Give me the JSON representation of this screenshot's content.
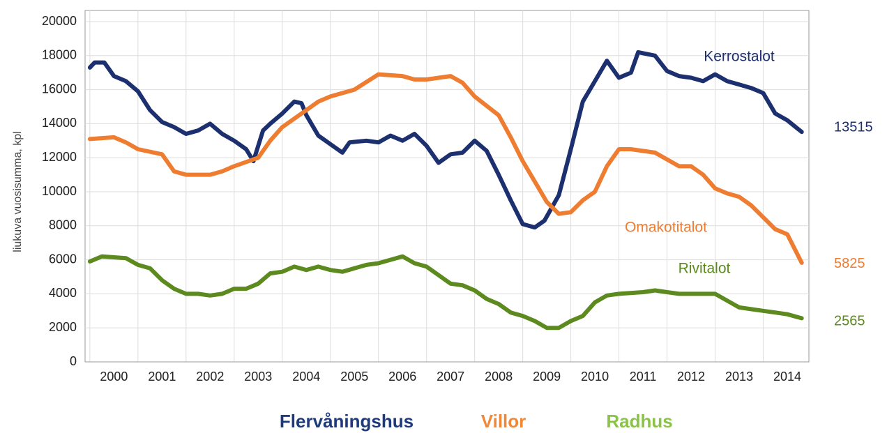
{
  "chart_data": {
    "type": "line",
    "ylabel": "liukuva vuosisumma, kpl",
    "xlim": [
      1999.9,
      2014.95
    ],
    "xticks": [
      2000,
      2001,
      2002,
      2003,
      2004,
      2005,
      2006,
      2007,
      2008,
      2009,
      2010,
      2011,
      2012,
      2013,
      2014
    ],
    "ylim": [
      0,
      20000
    ],
    "yticks": [
      0,
      2000,
      4000,
      6000,
      8000,
      10000,
      12000,
      14000,
      16000,
      18000,
      20000
    ],
    "grid": true,
    "series": [
      {
        "name": "Flervåningshus",
        "label": "Kerrostalot",
        "color": "#1c2f6e",
        "legend_color": "#1f3a7a",
        "x": [
          2000.0,
          2000.1,
          2000.3,
          2000.5,
          2000.75,
          2001.0,
          2001.25,
          2001.5,
          2001.75,
          2002.0,
          2002.25,
          2002.5,
          2002.75,
          2003.0,
          2003.25,
          2003.4,
          2003.6,
          2003.75,
          2004.0,
          2004.25,
          2004.4,
          2004.5,
          2004.75,
          2005.0,
          2005.25,
          2005.4,
          2005.75,
          2006.0,
          2006.25,
          2006.5,
          2006.75,
          2007.0,
          2007.25,
          2007.5,
          2007.75,
          2008.0,
          2008.25,
          2008.5,
          2008.75,
          2009.0,
          2009.25,
          2009.45,
          2009.75,
          2010.0,
          2010.25,
          2010.5,
          2010.75,
          2011.0,
          2011.25,
          2011.4,
          2011.75,
          2012.0,
          2012.25,
          2012.5,
          2012.75,
          2013.0,
          2013.25,
          2013.5,
          2013.75,
          2014.0,
          2014.25,
          2014.5,
          2014.8
        ],
        "values": [
          17300,
          17600,
          17600,
          16800,
          16500,
          15900,
          14800,
          14100,
          13800,
          13400,
          13600,
          14000,
          13400,
          13000,
          12500,
          11800,
          13600,
          14000,
          14600,
          15300,
          15200,
          14500,
          13300,
          12800,
          12300,
          12900,
          13000,
          12900,
          13300,
          13000,
          13400,
          12700,
          11700,
          12200,
          12300,
          13000,
          12400,
          11000,
          9500,
          8100,
          7900,
          8300,
          9800,
          12500,
          15300,
          16500,
          17700,
          16700,
          17000,
          18200,
          18000,
          17100,
          16800,
          16700,
          16500,
          16900,
          16500,
          16300,
          16100,
          15800,
          14600,
          14200,
          13515
        ]
      },
      {
        "name": "Villor",
        "label": "Omakotitalot",
        "color": "#ee7d31",
        "legend_color": "#f0883a",
        "x": [
          2000.0,
          2000.5,
          2000.75,
          2001.0,
          2001.5,
          2001.75,
          2002.0,
          2002.5,
          2002.75,
          2003.0,
          2003.5,
          2003.75,
          2004.0,
          2004.5,
          2004.75,
          2005.0,
          2005.5,
          2006.0,
          2006.5,
          2006.75,
          2007.0,
          2007.5,
          2007.75,
          2008.0,
          2008.5,
          2008.75,
          2009.0,
          2009.25,
          2009.5,
          2009.75,
          2010.0,
          2010.25,
          2010.5,
          2010.75,
          2011.0,
          2011.25,
          2011.75,
          2012.0,
          2012.25,
          2012.5,
          2012.75,
          2013.0,
          2013.25,
          2013.5,
          2013.75,
          2014.0,
          2014.25,
          2014.5,
          2014.8
        ],
        "values": [
          13100,
          13200,
          12900,
          12500,
          12200,
          11200,
          11000,
          11000,
          11200,
          11500,
          12000,
          13000,
          13800,
          14800,
          15300,
          15600,
          16000,
          16900,
          16800,
          16600,
          16600,
          16800,
          16400,
          15600,
          14500,
          13200,
          11800,
          10600,
          9400,
          8700,
          8800,
          9500,
          10000,
          11500,
          12500,
          12500,
          12300,
          11900,
          11500,
          11500,
          11000,
          10200,
          9900,
          9700,
          9200,
          8500,
          7800,
          7500,
          5825
        ]
      },
      {
        "name": "Radhus",
        "label": "Rivitalot",
        "color": "#5c8a1e",
        "legend_color": "#8bc34a",
        "x": [
          2000.0,
          2000.25,
          2000.75,
          2001.0,
          2001.25,
          2001.5,
          2001.75,
          2002.0,
          2002.25,
          2002.5,
          2002.75,
          2003.0,
          2003.25,
          2003.5,
          2003.75,
          2004.0,
          2004.25,
          2004.5,
          2004.75,
          2005.0,
          2005.25,
          2005.5,
          2005.75,
          2006.0,
          2006.25,
          2006.5,
          2006.75,
          2007.0,
          2007.25,
          2007.5,
          2007.75,
          2008.0,
          2008.25,
          2008.5,
          2008.75,
          2009.0,
          2009.25,
          2009.5,
          2009.75,
          2010.0,
          2010.25,
          2010.5,
          2010.75,
          2011.0,
          2011.5,
          2011.75,
          2012.0,
          2012.25,
          2012.5,
          2012.75,
          2013.0,
          2013.25,
          2013.5,
          2013.75,
          2014.0,
          2014.25,
          2014.5,
          2014.8
        ],
        "values": [
          5900,
          6200,
          6100,
          5700,
          5500,
          4800,
          4300,
          4000,
          4000,
          3900,
          4000,
          4300,
          4300,
          4600,
          5200,
          5300,
          5600,
          5400,
          5600,
          5400,
          5300,
          5500,
          5700,
          5800,
          6000,
          6200,
          5800,
          5600,
          5100,
          4600,
          4500,
          4200,
          3700,
          3400,
          2900,
          2700,
          2400,
          2000,
          2000,
          2400,
          2700,
          3500,
          3900,
          4000,
          4100,
          4200,
          4100,
          4000,
          4000,
          4000,
          4000,
          3600,
          3200,
          3100,
          3000,
          2900,
          2800,
          2565
        ]
      }
    ]
  }
}
